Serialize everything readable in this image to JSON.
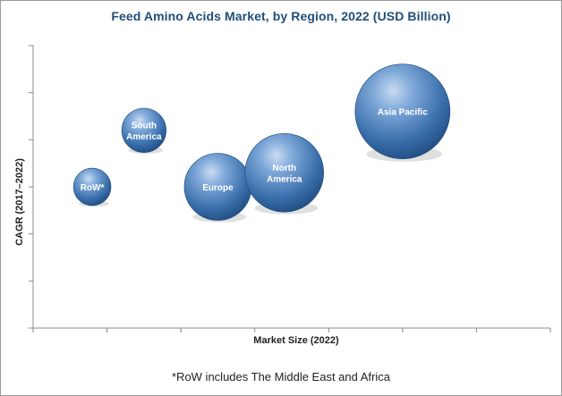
{
  "chart_data": {
    "type": "bubble",
    "title": "Feed Amino Acids Market, by Region, 2022 (USD Billion)",
    "xlabel": "Market Size (2022)",
    "ylabel": "CAGR (2017–2022)",
    "footnote": "*RoW includes The Middle East and Africa",
    "grid": false,
    "xlim": [
      0,
      7
    ],
    "ylim": [
      0,
      6
    ],
    "x_ticks": 7,
    "y_ticks": 6,
    "bubble_color": "#4f81bd",
    "series": [
      {
        "label": "RoW*",
        "x": 0.8,
        "y": 3.0,
        "size": 0.5
      },
      {
        "label": "South America",
        "x": 1.5,
        "y": 4.2,
        "size": 0.7
      },
      {
        "label": "Europe",
        "x": 2.5,
        "y": 3.0,
        "size": 1.6
      },
      {
        "label": "North America",
        "x": 3.4,
        "y": 3.3,
        "size": 2.2
      },
      {
        "label": "Asia Pacific",
        "x": 5.0,
        "y": 4.6,
        "size": 3.2
      }
    ]
  }
}
